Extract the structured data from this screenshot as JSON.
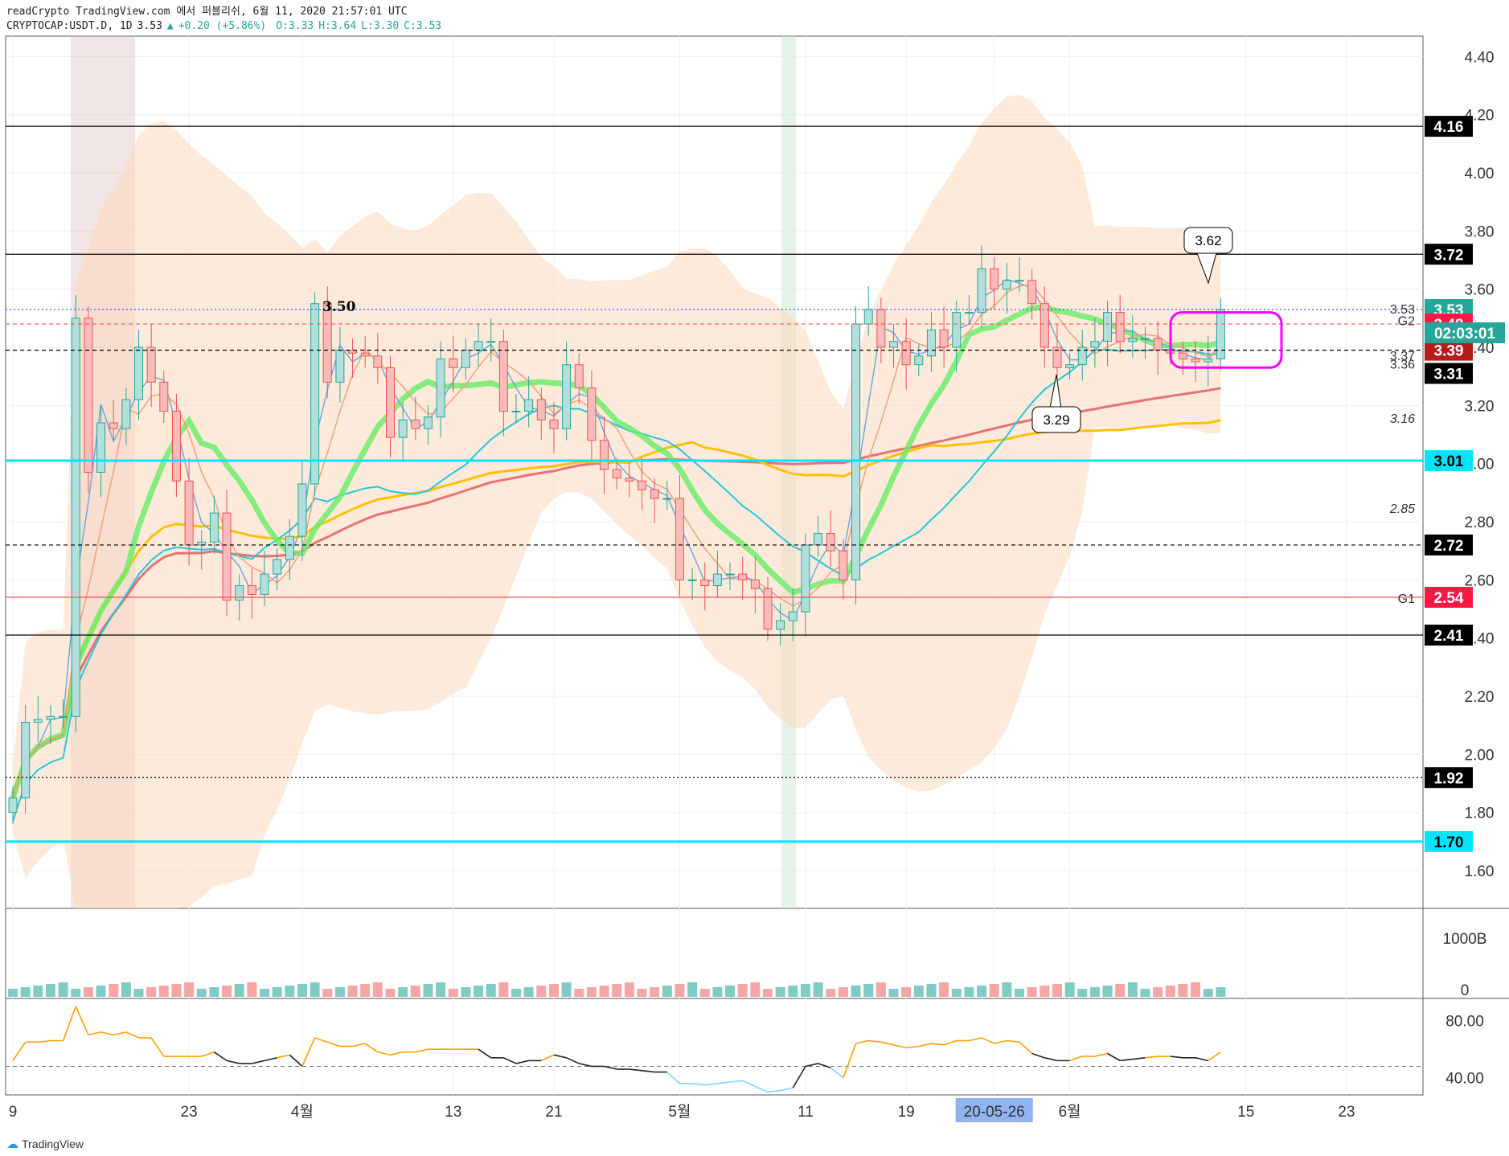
{
  "header": {
    "line1": "readCrypto TradingView.com 에서 퍼블리쉬, 6월 11, 2020 21:57:01 UTC",
    "symbol": "CRYPTOCAP:USDT.D, 1D",
    "last": "3.53",
    "change": "+0.20 (+5.86%)",
    "o": "O:3.33",
    "h": "H:3.64",
    "l": "L:3.30",
    "c": "C:3.53"
  },
  "footer": {
    "brand": "TradingView"
  },
  "colors": {
    "up": "#26a69a",
    "down": "#ef5350",
    "cyan": "#00e5ff",
    "green_ma": "#66ee66",
    "salmon": "#f4a07a",
    "yellow": "#ffc107"
  },
  "chart_data": {
    "type": "line",
    "main": {
      "ylim": [
        1.47,
        4.47
      ],
      "yticks": [
        "4.40",
        "4.20",
        "4.00",
        "3.80",
        "3.60",
        "3.40",
        "3.20",
        "3.00",
        "2.80",
        "2.60",
        "2.40",
        "2.20",
        "2.00",
        "1.80",
        "1.60"
      ],
      "xticks": [
        {
          "label": "9",
          "d": 0
        },
        {
          "label": "23",
          "d": 14
        },
        {
          "label": "4월",
          "d": 23
        },
        {
          "label": "13",
          "d": 35
        },
        {
          "label": "21",
          "d": 43
        },
        {
          "label": "5월",
          "d": 53
        },
        {
          "label": "11",
          "d": 63
        },
        {
          "label": "19",
          "d": 71
        },
        {
          "label": "20-05-26",
          "d": 78,
          "highlight": true
        },
        {
          "label": "6월",
          "d": 84
        },
        {
          "label": "15",
          "d": 98
        },
        {
          "label": "23",
          "d": 106
        }
      ],
      "close": [
        1.85,
        2.11,
        2.12,
        2.13,
        2.13,
        3.5,
        2.97,
        3.14,
        3.12,
        3.22,
        3.4,
        3.28,
        3.18,
        2.94,
        2.72,
        2.73,
        2.83,
        2.53,
        2.58,
        2.55,
        2.62,
        2.67,
        2.75,
        2.93,
        3.55,
        3.28,
        3.39,
        3.38,
        3.37,
        3.33,
        3.09,
        3.15,
        3.12,
        3.16,
        3.36,
        3.33,
        3.39,
        3.42,
        3.42,
        3.18,
        3.18,
        3.22,
        3.15,
        3.12,
        3.34,
        3.26,
        3.08,
        2.98,
        2.95,
        2.94,
        2.91,
        2.88,
        2.88,
        2.6,
        2.6,
        2.58,
        2.62,
        2.62,
        2.6,
        2.57,
        2.43,
        2.46,
        2.49,
        2.72,
        2.76,
        2.7,
        2.6,
        3.48,
        3.53,
        3.4,
        3.42,
        3.34,
        3.37,
        3.46,
        3.4,
        3.52,
        3.52,
        3.67,
        3.6,
        3.63,
        3.63,
        3.55,
        3.4,
        3.33,
        3.34,
        3.4,
        3.42,
        3.52,
        3.42,
        3.43,
        3.43,
        3.39,
        3.38,
        3.36,
        3.35,
        3.36,
        3.53
      ],
      "levels": [
        {
          "value": "4.16",
          "style": "solid",
          "color": "#000000",
          "box": "#000000"
        },
        {
          "value": "3.72",
          "style": "solid",
          "color": "#000000",
          "box": "#000000"
        },
        {
          "value": "3.53",
          "style": "dotted",
          "color": "#2962ff",
          "box": "#26a69a"
        },
        {
          "value": "3.48",
          "style": "dashed",
          "color": "#ef5350",
          "box": "#ff1744"
        },
        {
          "value": "3.39",
          "style": "dashed",
          "color": "#000000",
          "box": "#b71c1c"
        },
        {
          "value": "3.31",
          "style": "none",
          "color": "#000000",
          "box": "#000000"
        },
        {
          "value": "3.01",
          "style": "thick",
          "color": "#00e5ff",
          "box": "#00e5ff"
        },
        {
          "value": "2.72",
          "style": "dashed",
          "color": "#000000",
          "box": "#000000"
        },
        {
          "value": "2.54",
          "style": "solid",
          "color": "#ef5350",
          "box": "#ff1744"
        },
        {
          "value": "2.41",
          "style": "solid",
          "color": "#000000",
          "box": "#000000"
        },
        {
          "value": "1.92",
          "style": "dotted",
          "color": "#000000",
          "box": "#000000"
        },
        {
          "value": "1.70",
          "style": "thick",
          "color": "#00e5ff",
          "box": "#00e5ff"
        }
      ],
      "countdown": "02:03:01",
      "annotations": [
        {
          "text": "3.62",
          "kind": "callout"
        },
        {
          "text": "3.29",
          "kind": "callout"
        },
        {
          "text": "3.50",
          "kind": "label"
        },
        {
          "text": "3.53",
          "kind": "right"
        },
        {
          "text": "G2",
          "kind": "right"
        },
        {
          "text": "3.37",
          "kind": "right"
        },
        {
          "text": "3.36",
          "kind": "right"
        },
        {
          "text": "3.16",
          "kind": "right"
        },
        {
          "text": "2.85",
          "kind": "right"
        },
        {
          "text": "G1",
          "kind": "right"
        }
      ]
    },
    "volume": {
      "ytick_top": "1000B",
      "ytick_bottom": "0"
    },
    "oscillator": {
      "yticks": [
        "80.00",
        "40.00"
      ],
      "ylim": [
        28,
        95
      ],
      "values": [
        52,
        65,
        65,
        66,
        66,
        90,
        70,
        72,
        70,
        72,
        68,
        68,
        55,
        55,
        55,
        55,
        58,
        52,
        50,
        50,
        52,
        54,
        56,
        48,
        68,
        65,
        62,
        62,
        64,
        58,
        56,
        58,
        58,
        60,
        60,
        60,
        60,
        60,
        54,
        54,
        50,
        52,
        52,
        56,
        54,
        50,
        48,
        48,
        46,
        46,
        45,
        44,
        44,
        36,
        36,
        35,
        36,
        37,
        38,
        34,
        30,
        31,
        33,
        48,
        50,
        47,
        40,
        64,
        66,
        65,
        63,
        61,
        62,
        64,
        63,
        66,
        66,
        68,
        64,
        66,
        65,
        57,
        54,
        52,
        52,
        55,
        55,
        57,
        52,
        53,
        54,
        55,
        55,
        54,
        54,
        52,
        58
      ]
    }
  }
}
